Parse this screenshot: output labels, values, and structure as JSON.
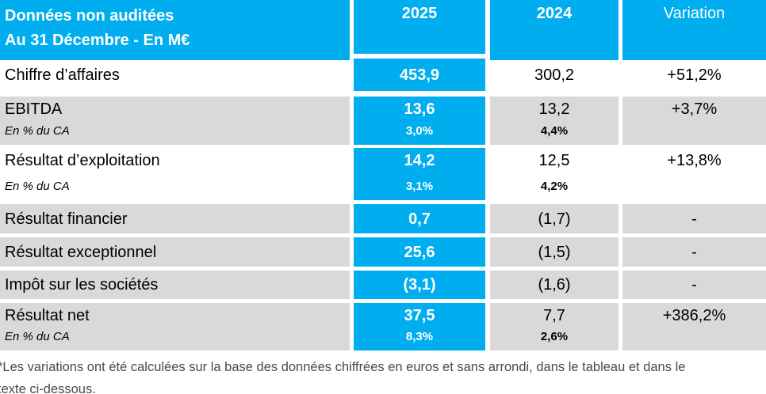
{
  "colors": {
    "accent_blue": "#00aeef",
    "row_gray": "#d9d9d9",
    "footnote_text": "#4a4a4a"
  },
  "header": {
    "title_line1": "Données non auditées",
    "title_line2": "Au 31 Décembre - En M€",
    "col_2025": "2025",
    "col_2024": "2024",
    "col_variation": "Variation"
  },
  "table": {
    "rows": [
      {
        "label": "Chiffre d’affaires",
        "v2025": "453,9",
        "v2024": "300,2",
        "variation": "+51,2%"
      },
      {
        "label": "EBITDA",
        "sub_label": "En % du CA",
        "v2025": "13,6",
        "p2025": "3,0%",
        "v2024": "13,2",
        "p2024": "4,4%",
        "variation": "+3,7%"
      },
      {
        "label": "Résultat d’exploitation",
        "sub_label": "En % du CA",
        "v2025": "14,2",
        "p2025": "3,1%",
        "v2024": "12,5",
        "p2024": "4,2%",
        "variation": "+13,8%"
      },
      {
        "label": "Résultat financier",
        "v2025": "0,7",
        "v2024": "(1,7)",
        "variation": "-"
      },
      {
        "label": "Résultat exceptionnel",
        "v2025": "25,6",
        "v2024": "(1,5)",
        "variation": "-"
      },
      {
        "label": "Impôt sur les sociétés",
        "v2025": "(3,1)",
        "v2024": "(1,6)",
        "variation": "-"
      },
      {
        "label": "Résultat net",
        "sub_label": "En % du CA",
        "v2025": "37,5",
        "p2025": "8,3%",
        "v2024": "7,7",
        "p2024": "2,6%",
        "variation": "+386,2%"
      }
    ]
  },
  "footnote": {
    "line1": "*Les variations ont été calculées sur la base des données chiffrées en euros et sans arrondi, dans le tableau et dans le",
    "line2": "texte ci-dessous."
  }
}
